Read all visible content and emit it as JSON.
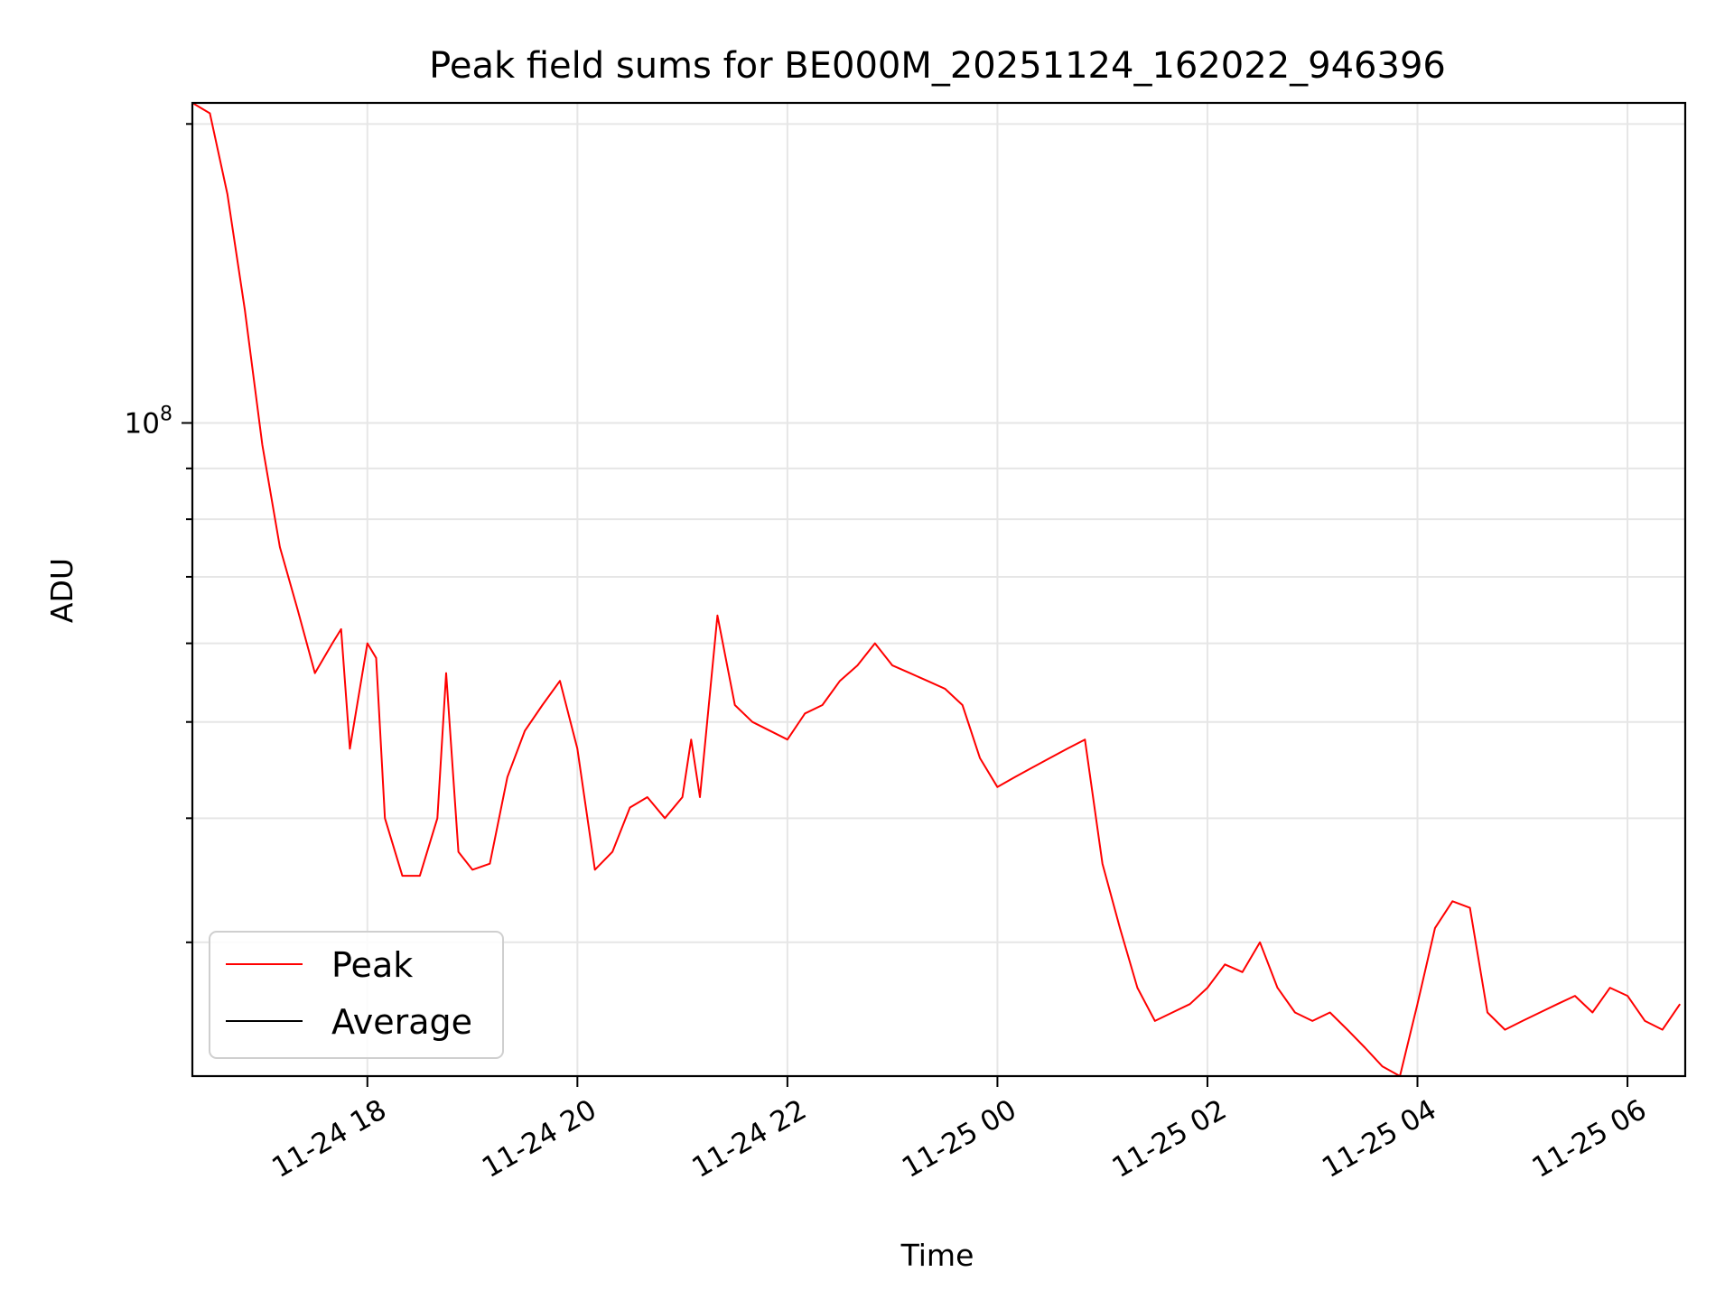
{
  "chart_data": {
    "type": "line",
    "title": "Peak field sums for BE000M_20251124_162022_946396",
    "xlabel": "Time",
    "ylabel": "ADU",
    "y_scale": "log",
    "y_tick_labels": [
      {
        "value": 100000000,
        "label": "10^8"
      }
    ],
    "ylim": [
      22000000,
      210000000
    ],
    "xlim": [
      "2025-11-24 16:20",
      "2025-11-25 06:33"
    ],
    "x_ticks": [
      {
        "value": "2025-11-24 18:00",
        "label": "11-24 18"
      },
      {
        "value": "2025-11-24 20:00",
        "label": "11-24 20"
      },
      {
        "value": "2025-11-24 22:00",
        "label": "11-24 22"
      },
      {
        "value": "2025-11-25 00:00",
        "label": "11-25 00"
      },
      {
        "value": "2025-11-25 02:00",
        "label": "11-25 02"
      },
      {
        "value": "2025-11-25 04:00",
        "label": "11-25 04"
      },
      {
        "value": "2025-11-25 06:00",
        "label": "11-25 06"
      }
    ],
    "grid": true,
    "legend_position": "lower-left",
    "series": [
      {
        "name": "Peak",
        "color": "#ff0000",
        "points": [
          [
            "2025-11-24 16:20",
            210000000
          ],
          [
            "2025-11-24 16:30",
            205000000
          ],
          [
            "2025-11-24 16:40",
            170000000
          ],
          [
            "2025-11-24 16:50",
            130000000
          ],
          [
            "2025-11-24 17:00",
            95000000
          ],
          [
            "2025-11-24 17:10",
            75000000
          ],
          [
            "2025-11-24 17:20",
            65000000
          ],
          [
            "2025-11-24 17:30",
            56000000
          ],
          [
            "2025-11-24 17:40",
            60000000
          ],
          [
            "2025-11-24 17:45",
            62000000
          ],
          [
            "2025-11-24 17:50",
            47000000
          ],
          [
            "2025-11-24 18:00",
            60000000
          ],
          [
            "2025-11-24 18:05",
            58000000
          ],
          [
            "2025-11-24 18:10",
            40000000
          ],
          [
            "2025-11-24 18:20",
            35000000
          ],
          [
            "2025-11-24 18:30",
            35000000
          ],
          [
            "2025-11-24 18:40",
            40000000
          ],
          [
            "2025-11-24 18:45",
            56000000
          ],
          [
            "2025-11-24 18:52",
            37000000
          ],
          [
            "2025-11-24 19:00",
            35500000
          ],
          [
            "2025-11-24 19:10",
            36000000
          ],
          [
            "2025-11-24 19:20",
            44000000
          ],
          [
            "2025-11-24 19:30",
            49000000
          ],
          [
            "2025-11-24 19:40",
            52000000
          ],
          [
            "2025-11-24 19:50",
            55000000
          ],
          [
            "2025-11-24 20:00",
            47000000
          ],
          [
            "2025-11-24 20:10",
            35500000
          ],
          [
            "2025-11-24 20:20",
            37000000
          ],
          [
            "2025-11-24 20:30",
            41000000
          ],
          [
            "2025-11-24 20:40",
            42000000
          ],
          [
            "2025-11-24 20:50",
            40000000
          ],
          [
            "2025-11-24 21:00",
            42000000
          ],
          [
            "2025-11-24 21:05",
            48000000
          ],
          [
            "2025-11-24 21:10",
            42000000
          ],
          [
            "2025-11-24 21:20",
            64000000
          ],
          [
            "2025-11-24 21:30",
            52000000
          ],
          [
            "2025-11-24 21:40",
            50000000
          ],
          [
            "2025-11-24 22:00",
            48000000
          ],
          [
            "2025-11-24 22:10",
            51000000
          ],
          [
            "2025-11-24 22:20",
            52000000
          ],
          [
            "2025-11-24 22:30",
            55000000
          ],
          [
            "2025-11-24 22:40",
            57000000
          ],
          [
            "2025-11-24 22:50",
            60000000
          ],
          [
            "2025-11-24 23:00",
            57000000
          ],
          [
            "2025-11-24 23:10",
            56000000
          ],
          [
            "2025-11-24 23:20",
            55000000
          ],
          [
            "2025-11-24 23:30",
            54000000
          ],
          [
            "2025-11-24 23:40",
            52000000
          ],
          [
            "2025-11-24 23:50",
            46000000
          ],
          [
            "2025-11-25 00:00",
            43000000
          ],
          [
            "2025-11-25 00:10",
            44000000
          ],
          [
            "2025-11-25 00:20",
            45000000
          ],
          [
            "2025-11-25 00:30",
            46000000
          ],
          [
            "2025-11-25 00:40",
            47000000
          ],
          [
            "2025-11-25 00:50",
            48000000
          ],
          [
            "2025-11-25 01:00",
            36000000
          ],
          [
            "2025-11-25 01:10",
            31000000
          ],
          [
            "2025-11-25 01:20",
            27000000
          ],
          [
            "2025-11-25 01:30",
            25000000
          ],
          [
            "2025-11-25 01:40",
            25500000
          ],
          [
            "2025-11-25 01:50",
            26000000
          ],
          [
            "2025-11-25 02:00",
            27000000
          ],
          [
            "2025-11-25 02:10",
            28500000
          ],
          [
            "2025-11-25 02:20",
            28000000
          ],
          [
            "2025-11-25 02:30",
            30000000
          ],
          [
            "2025-11-25 02:40",
            27000000
          ],
          [
            "2025-11-25 02:50",
            25500000
          ],
          [
            "2025-11-25 03:00",
            25000000
          ],
          [
            "2025-11-25 03:10",
            25500000
          ],
          [
            "2025-11-25 03:20",
            24500000
          ],
          [
            "2025-11-25 03:30",
            23500000
          ],
          [
            "2025-11-25 03:40",
            22500000
          ],
          [
            "2025-11-25 03:50",
            22000000
          ],
          [
            "2025-11-25 04:00",
            26000000
          ],
          [
            "2025-11-25 04:10",
            31000000
          ],
          [
            "2025-11-25 04:20",
            33000000
          ],
          [
            "2025-11-25 04:30",
            32500000
          ],
          [
            "2025-11-25 04:40",
            25500000
          ],
          [
            "2025-11-25 04:50",
            24500000
          ],
          [
            "2025-11-25 05:00",
            25000000
          ],
          [
            "2025-11-25 05:10",
            25500000
          ],
          [
            "2025-11-25 05:20",
            26000000
          ],
          [
            "2025-11-25 05:30",
            26500000
          ],
          [
            "2025-11-25 05:40",
            25500000
          ],
          [
            "2025-11-25 05:50",
            27000000
          ],
          [
            "2025-11-25 06:00",
            26500000
          ],
          [
            "2025-11-25 06:10",
            25000000
          ],
          [
            "2025-11-25 06:20",
            24500000
          ],
          [
            "2025-11-25 06:30",
            26000000
          ]
        ]
      },
      {
        "name": "Average",
        "color": "#000000",
        "points": []
      }
    ]
  },
  "legend": {
    "items": [
      {
        "label": "Peak",
        "color": "#ff0000"
      },
      {
        "label": "Average",
        "color": "#000000"
      }
    ]
  }
}
